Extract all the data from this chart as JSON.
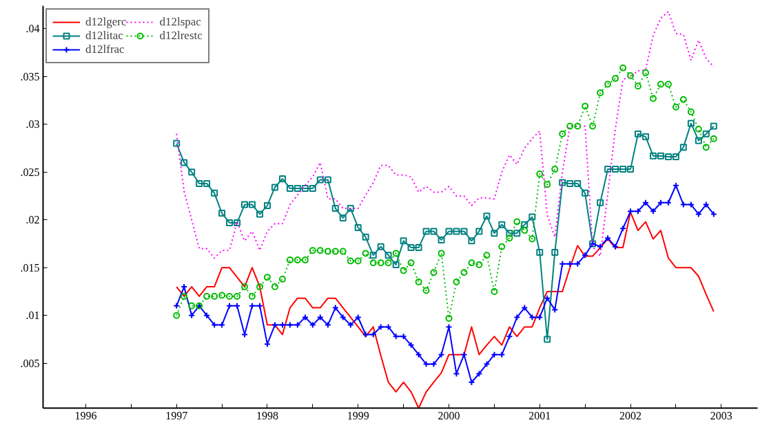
{
  "chart_data": {
    "type": "line",
    "x": [
      1997,
      1997.083,
      1997.167,
      1997.25,
      1997.333,
      1997.417,
      1997.5,
      1997.583,
      1997.667,
      1997.75,
      1997.833,
      1997.917,
      1998,
      1998.083,
      1998.167,
      1998.25,
      1998.333,
      1998.417,
      1998.5,
      1998.583,
      1998.667,
      1998.75,
      1998.833,
      1998.917,
      1999,
      1999.083,
      1999.167,
      1999.25,
      1999.333,
      1999.417,
      1999.5,
      1999.583,
      1999.667,
      1999.75,
      1999.833,
      1999.917,
      2000,
      2000.083,
      2000.167,
      2000.25,
      2000.333,
      2000.417,
      2000.5,
      2000.583,
      2000.667,
      2000.75,
      2000.833,
      2000.917,
      2001,
      2001.083,
      2001.167,
      2001.25,
      2001.333,
      2001.417,
      2001.5,
      2001.583,
      2001.667,
      2001.75,
      2001.833,
      2001.917,
      2002,
      2002.083,
      2002.167,
      2002.25,
      2002.333,
      2002.417,
      2002.5,
      2002.583,
      2002.667,
      2002.75,
      2002.833,
      2002.917
    ],
    "series": [
      {
        "name": "d12lgerc",
        "color": "#ff0000",
        "marker": "none",
        "line_style": "solid",
        "values": [
          0.013,
          0.012,
          0.013,
          0.012,
          0.013,
          0.013,
          0.015,
          0.015,
          0.014,
          0.013,
          0.015,
          0.013,
          0.009,
          0.009,
          0.008,
          0.0108,
          0.0118,
          0.0118,
          0.0108,
          0.0108,
          0.0118,
          0.0118,
          0.0108,
          0.0098,
          0.0088,
          0.0078,
          0.0088,
          0.0058,
          0.003,
          0.002,
          0.003,
          0.002,
          0.0003,
          0.002,
          0.003,
          0.004,
          0.0059,
          0.0059,
          0.0059,
          0.0088,
          0.0059,
          0.0069,
          0.0078,
          0.0069,
          0.0088,
          0.0078,
          0.0088,
          0.0088,
          0.0108,
          0.0125,
          0.0125,
          0.0125,
          0.015,
          0.0173,
          0.0162,
          0.0162,
          0.0171,
          0.018,
          0.0171,
          0.0171,
          0.0208,
          0.0189,
          0.0198,
          0.018,
          0.0189,
          0.016,
          0.015,
          0.015,
          0.015,
          0.0141,
          0.0122,
          0.0104
        ]
      },
      {
        "name": "d12litac",
        "color": "#008080",
        "marker": "square",
        "line_style": "solid",
        "values": [
          0.028,
          0.026,
          0.025,
          0.0238,
          0.0238,
          0.0228,
          0.0207,
          0.0197,
          0.0197,
          0.0216,
          0.0216,
          0.0206,
          0.0215,
          0.0234,
          0.0243,
          0.0233,
          0.0233,
          0.0233,
          0.0233,
          0.0242,
          0.0242,
          0.0212,
          0.0202,
          0.0212,
          0.0192,
          0.0182,
          0.0163,
          0.0172,
          0.0163,
          0.0153,
          0.0178,
          0.0171,
          0.0171,
          0.0188,
          0.0188,
          0.0179,
          0.0188,
          0.0188,
          0.0188,
          0.0178,
          0.0188,
          0.0204,
          0.0186,
          0.0195,
          0.0186,
          0.0186,
          0.0195,
          0.0203,
          0.0166,
          0.0075,
          0.0166,
          0.0239,
          0.0238,
          0.0238,
          0.0228,
          0.0175,
          0.0218,
          0.0253,
          0.0253,
          0.0253,
          0.0253,
          0.029,
          0.0287,
          0.0267,
          0.0267,
          0.0266,
          0.0266,
          0.0276,
          0.0301,
          0.0283,
          0.029,
          0.0298
        ]
      },
      {
        "name": "d12lfrac",
        "color": "#0000ff",
        "marker": "cross",
        "line_style": "solid",
        "values": [
          0.011,
          0.013,
          0.01,
          0.011,
          0.01,
          0.009,
          0.009,
          0.011,
          0.011,
          0.008,
          0.011,
          0.011,
          0.007,
          0.009,
          0.009,
          0.009,
          0.009,
          0.0098,
          0.009,
          0.0098,
          0.009,
          0.0108,
          0.0098,
          0.009,
          0.0098,
          0.008,
          0.008,
          0.0088,
          0.0088,
          0.0078,
          0.0078,
          0.0069,
          0.0059,
          0.0049,
          0.0049,
          0.0059,
          0.0088,
          0.0039,
          0.0059,
          0.003,
          0.0039,
          0.0049,
          0.0059,
          0.0059,
          0.0078,
          0.0098,
          0.0108,
          0.0098,
          0.0098,
          0.0118,
          0.0106,
          0.0154,
          0.0154,
          0.0154,
          0.0163,
          0.0175,
          0.0172,
          0.0181,
          0.0172,
          0.0191,
          0.0209,
          0.0209,
          0.0218,
          0.0209,
          0.0218,
          0.0218,
          0.0236,
          0.0216,
          0.0216,
          0.0206,
          0.0216,
          0.0206
        ]
      },
      {
        "name": "d12lspac",
        "color": "#ff00ff",
        "marker": "none",
        "line_style": "dotted",
        "values": [
          0.029,
          0.023,
          0.02,
          0.017,
          0.017,
          0.016,
          0.0168,
          0.0168,
          0.0198,
          0.0178,
          0.0188,
          0.0168,
          0.0188,
          0.0196,
          0.0196,
          0.0216,
          0.0226,
          0.0236,
          0.0245,
          0.026,
          0.0222,
          0.0222,
          0.0212,
          0.0212,
          0.0212,
          0.0226,
          0.0239,
          0.0257,
          0.0257,
          0.0247,
          0.0247,
          0.0245,
          0.0229,
          0.0235,
          0.0229,
          0.0229,
          0.0235,
          0.0225,
          0.0225,
          0.0215,
          0.0223,
          0.0223,
          0.0222,
          0.025,
          0.0268,
          0.0258,
          0.0275,
          0.0285,
          0.0293,
          0.0205,
          0.0182,
          0.025,
          0.0298,
          0.0298,
          0.0298,
          0.0172,
          0.0162,
          0.0227,
          0.0295,
          0.0347,
          0.035,
          0.0356,
          0.0357,
          0.0393,
          0.0411,
          0.0418,
          0.0395,
          0.0394,
          0.0367,
          0.0388,
          0.0369,
          0.036
        ]
      },
      {
        "name": "d12lrestc",
        "color": "#00bb00",
        "marker": "circle",
        "line_style": "dotted",
        "values": [
          0.01,
          0.012,
          0.011,
          0.011,
          0.012,
          0.012,
          0.0121,
          0.012,
          0.012,
          0.013,
          0.012,
          0.013,
          0.014,
          0.013,
          0.0138,
          0.0158,
          0.0158,
          0.0158,
          0.0168,
          0.0168,
          0.0167,
          0.0167,
          0.0167,
          0.0157,
          0.0157,
          0.0165,
          0.0155,
          0.0155,
          0.0155,
          0.0165,
          0.0147,
          0.0155,
          0.0135,
          0.0126,
          0.0145,
          0.0165,
          0.0097,
          0.0135,
          0.0145,
          0.0155,
          0.0153,
          0.0163,
          0.0125,
          0.0172,
          0.0181,
          0.0198,
          0.0189,
          0.018,
          0.0248,
          0.0237,
          0.0253,
          0.029,
          0.0298,
          0.0298,
          0.0319,
          0.0298,
          0.0333,
          0.0342,
          0.0348,
          0.0359,
          0.0351,
          0.034,
          0.0354,
          0.0327,
          0.0342,
          0.0342,
          0.0318,
          0.0326,
          0.0313,
          0.0295,
          0.0276,
          0.0285
        ]
      }
    ],
    "xlim": [
      1995.53,
      2003.4
    ],
    "ylim": [
      0.0003,
      0.0424
    ],
    "xticks": [
      1996,
      {
        "value": 1996.5,
        "label": null
      },
      1997,
      {
        "value": 1997.5,
        "label": null
      },
      1998,
      {
        "value": 1998.5,
        "label": null
      },
      1999,
      {
        "value": 1999.5,
        "label": null
      },
      2000,
      {
        "value": 2000.5,
        "label": null
      },
      2001,
      {
        "value": 2001.5,
        "label": null
      },
      2002,
      {
        "value": 2002.5,
        "label": null
      },
      2003
    ],
    "yticks": [
      {
        "value": 0.005,
        "label": ".005"
      },
      {
        "value": 0.01,
        "label": ".01"
      },
      {
        "value": 0.015,
        "label": ".015"
      },
      {
        "value": 0.02,
        "label": ".02"
      },
      {
        "value": 0.025,
        "label": ".025"
      },
      {
        "value": 0.03,
        "label": ".03"
      },
      {
        "value": 0.035,
        "label": ".035"
      },
      {
        "value": 0.04,
        "label": ".04"
      }
    ],
    "grid": false,
    "legend": "top left"
  }
}
